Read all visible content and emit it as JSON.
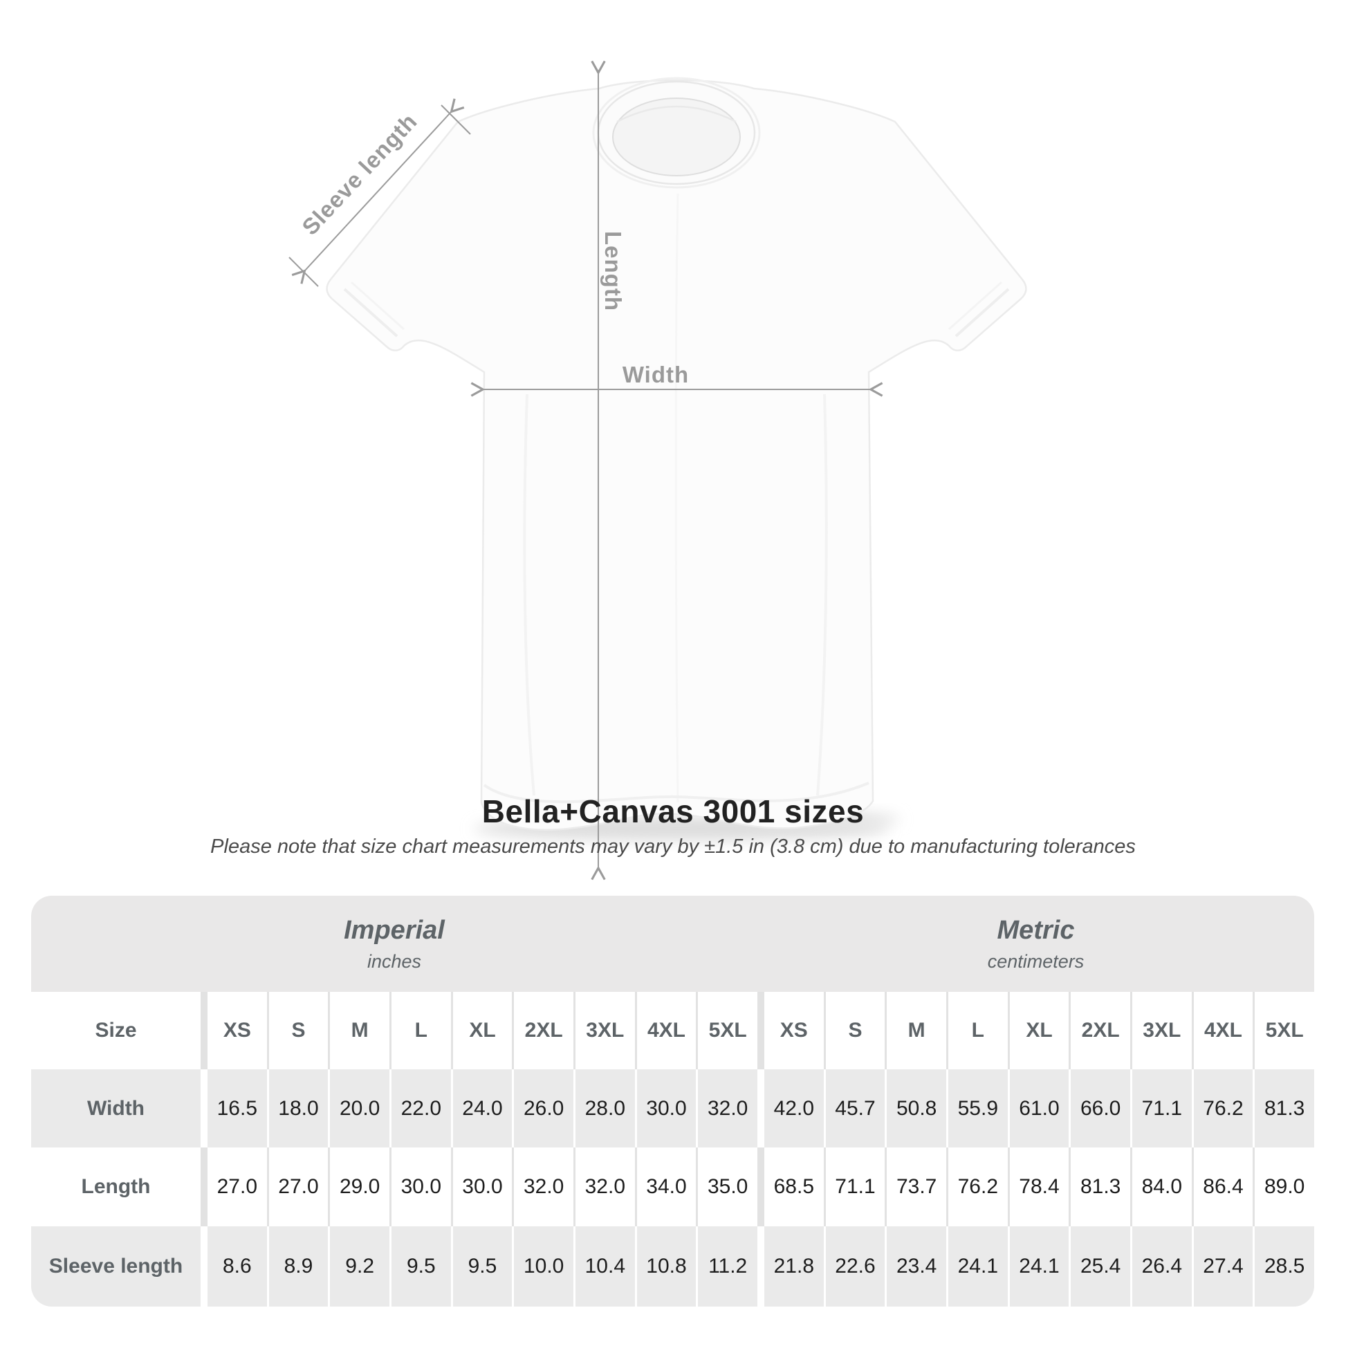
{
  "diagram": {
    "labels": {
      "sleeve_length": "Sleeve length",
      "length": "Length",
      "width": "Width"
    }
  },
  "title": "Bella+Canvas 3001 sizes",
  "subtitle": "Please note that size chart measurements may vary by ±1.5 in (3.8 cm) due to manufacturing tolerances",
  "table": {
    "sections": [
      {
        "label": "Imperial",
        "unit": "inches"
      },
      {
        "label": "Metric",
        "unit": "centimeters"
      }
    ],
    "size_column_header": "Size",
    "sizes": [
      "XS",
      "S",
      "M",
      "L",
      "XL",
      "2XL",
      "3XL",
      "4XL",
      "5XL"
    ],
    "rows": [
      {
        "label": "Width",
        "imperial": [
          "16.5",
          "18.0",
          "20.0",
          "22.0",
          "24.0",
          "26.0",
          "28.0",
          "30.0",
          "32.0"
        ],
        "metric": [
          "42.0",
          "45.7",
          "50.8",
          "55.9",
          "61.0",
          "66.0",
          "71.1",
          "76.2",
          "81.3"
        ]
      },
      {
        "label": "Length",
        "imperial": [
          "27.0",
          "27.0",
          "29.0",
          "30.0",
          "30.0",
          "32.0",
          "32.0",
          "34.0",
          "35.0"
        ],
        "metric": [
          "68.5",
          "71.1",
          "73.7",
          "76.2",
          "78.4",
          "81.3",
          "84.0",
          "86.4",
          "89.0"
        ]
      },
      {
        "label": "Sleeve length",
        "imperial": [
          "8.6",
          "8.9",
          "9.2",
          "9.5",
          "9.5",
          "10.0",
          "10.4",
          "10.8",
          "11.2"
        ],
        "metric": [
          "21.8",
          "22.6",
          "23.4",
          "24.1",
          "24.1",
          "25.4",
          "26.4",
          "27.4",
          "28.5"
        ]
      }
    ]
  },
  "colors": {
    "band_gray": "#e9e8e8",
    "cell_gray": "#eaeaea",
    "separator": "#e2e2e2",
    "header_text": "#5d6367",
    "data_text": "#1d1d1d",
    "arrow": "#9b9b9b"
  },
  "chart_data": {
    "type": "table",
    "title": "Bella+Canvas 3001 sizes",
    "note": "Please note that size chart measurements may vary by ±1.5 in (3.8 cm) due to manufacturing tolerances",
    "categories": [
      "XS",
      "S",
      "M",
      "L",
      "XL",
      "2XL",
      "3XL",
      "4XL",
      "5XL"
    ],
    "sections": [
      {
        "name": "Imperial",
        "unit": "inches",
        "series": [
          {
            "name": "Width",
            "values": [
              16.5,
              18.0,
              20.0,
              22.0,
              24.0,
              26.0,
              28.0,
              30.0,
              32.0
            ]
          },
          {
            "name": "Length",
            "values": [
              27.0,
              27.0,
              29.0,
              30.0,
              30.0,
              32.0,
              32.0,
              34.0,
              35.0
            ]
          },
          {
            "name": "Sleeve length",
            "values": [
              8.6,
              8.9,
              9.2,
              9.5,
              9.5,
              10.0,
              10.4,
              10.8,
              11.2
            ]
          }
        ]
      },
      {
        "name": "Metric",
        "unit": "centimeters",
        "series": [
          {
            "name": "Width",
            "values": [
              42.0,
              45.7,
              50.8,
              55.9,
              61.0,
              66.0,
              71.1,
              76.2,
              81.3
            ]
          },
          {
            "name": "Length",
            "values": [
              68.5,
              71.1,
              73.7,
              76.2,
              78.4,
              81.3,
              84.0,
              86.4,
              89.0
            ]
          },
          {
            "name": "Sleeve length",
            "values": [
              21.8,
              22.6,
              23.4,
              24.1,
              24.1,
              25.4,
              26.4,
              27.4,
              28.5
            ]
          }
        ]
      }
    ]
  }
}
